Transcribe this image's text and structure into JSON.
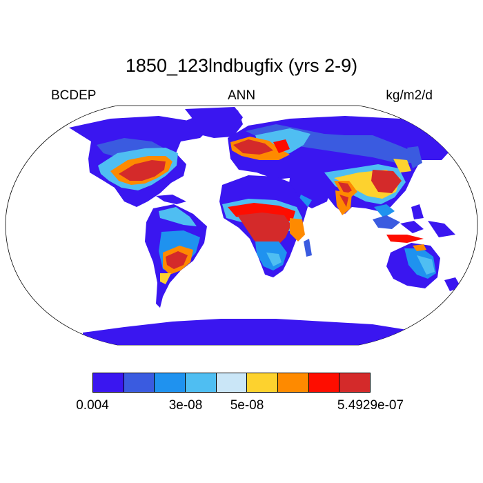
{
  "title": "1850_123lndbugfix (yrs 2-9)",
  "left_label": "BCDEP",
  "center_label": "ANN",
  "right_label": "kg/m2/d",
  "colorbar": {
    "colors": [
      "#3a16f0",
      "#3a5be0",
      "#1f92ef",
      "#4fbef2",
      "#cae6f7",
      "#fdd22e",
      "#fe8a00",
      "#fe0d00",
      "#d42a2a"
    ],
    "tick_labels": [
      "0.004",
      "3e-08",
      "5e-08",
      "5.4929e-07"
    ]
  },
  "palette": {
    "ocean": "#ffffff",
    "outline": "#000000"
  }
}
